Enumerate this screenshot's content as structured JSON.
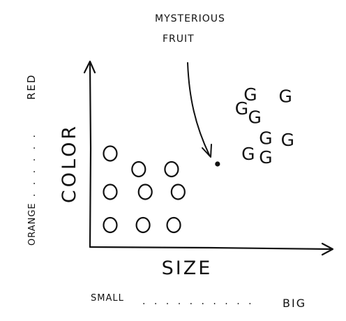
{
  "chart_data": {
    "type": "scatter",
    "title": "",
    "xlabel": "SIZE",
    "ylabel": "COLOR",
    "x_scale": {
      "low_label": "SMALL",
      "dots": ". . . . . . . . . .",
      "high_label": "BIG"
    },
    "y_scale": {
      "low_label": "ORANGE",
      "dots": ". . . . . .",
      "high_label": "RED"
    },
    "xlim": [
      0,
      10
    ],
    "ylim": [
      0,
      10
    ],
    "grid": false,
    "legend": "none",
    "series": [
      {
        "marker": "O",
        "points": [
          [
            0.7,
            5.2
          ],
          [
            2.0,
            4.3
          ],
          [
            3.5,
            4.3
          ],
          [
            0.7,
            3.0
          ],
          [
            2.3,
            3.0
          ],
          [
            3.8,
            3.0
          ],
          [
            0.7,
            1.1
          ],
          [
            2.2,
            1.1
          ],
          [
            3.6,
            1.1
          ]
        ]
      },
      {
        "marker": "G",
        "points": [
          [
            6.7,
            7.8
          ],
          [
            7.1,
            8.6
          ],
          [
            8.7,
            8.5
          ],
          [
            7.3,
            7.3
          ],
          [
            7.8,
            6.1
          ],
          [
            8.8,
            6.0
          ],
          [
            7.0,
            5.2
          ],
          [
            7.8,
            5.0
          ]
        ]
      },
      {
        "marker": "dot",
        "points": [
          [
            5.6,
            4.6
          ]
        ]
      }
    ],
    "annotations": [
      {
        "text": [
          "MYSTERIOUS",
          "FRUIT"
        ],
        "points_to": [
          5.6,
          4.6
        ]
      }
    ]
  },
  "colors": {
    "ink": "#111111",
    "background": "#ffffff"
  }
}
